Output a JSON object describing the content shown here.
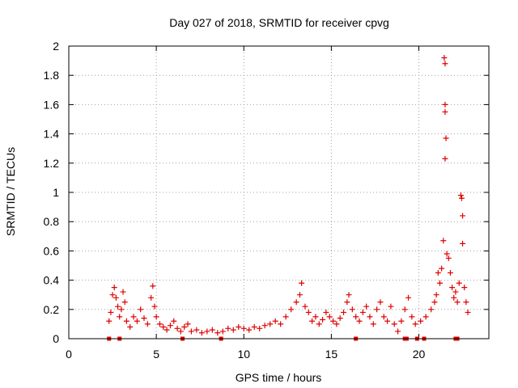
{
  "chart_data": {
    "type": "scatter",
    "title": "Day 027 of 2018, SRMTID for receiver cpvg",
    "xlabel": "GPS time / hours",
    "ylabel": "SRMTID / TECUs",
    "xlim": [
      0,
      24
    ],
    "ylim": [
      0,
      2
    ],
    "xticks": [
      0,
      5,
      10,
      15,
      20
    ],
    "yticks": [
      0,
      0.2,
      0.4,
      0.6,
      0.8,
      1,
      1.2,
      1.4,
      1.6,
      1.8,
      2
    ],
    "xtick_labels": [
      "0",
      "5",
      "10",
      "15",
      "20"
    ],
    "ytick_labels": [
      "0",
      "0.2",
      "0.4",
      "0.6",
      "0.8",
      "1",
      "1.2",
      "1.4",
      "1.6",
      "1.8",
      "2"
    ],
    "grid": true,
    "marker": "+",
    "marker_color": "#e00000",
    "series": [
      {
        "name": "SRMTID",
        "points": [
          [
            2.3,
            0.12
          ],
          [
            2.4,
            0.18
          ],
          [
            2.5,
            0.3
          ],
          [
            2.6,
            0.35
          ],
          [
            2.7,
            0.28
          ],
          [
            2.8,
            0.22
          ],
          [
            2.9,
            0.15
          ],
          [
            3.0,
            0.2
          ],
          [
            3.1,
            0.32
          ],
          [
            3.2,
            0.25
          ],
          [
            3.3,
            0.12
          ],
          [
            3.5,
            0.08
          ],
          [
            3.7,
            0.15
          ],
          [
            3.9,
            0.12
          ],
          [
            4.1,
            0.2
          ],
          [
            4.3,
            0.14
          ],
          [
            4.5,
            0.1
          ],
          [
            4.7,
            0.28
          ],
          [
            4.8,
            0.36
          ],
          [
            4.9,
            0.22
          ],
          [
            5.0,
            0.15
          ],
          [
            5.2,
            0.1
          ],
          [
            5.4,
            0.08
          ],
          [
            5.6,
            0.06
          ],
          [
            5.8,
            0.09
          ],
          [
            6.0,
            0.12
          ],
          [
            6.2,
            0.07
          ],
          [
            6.4,
            0.05
          ],
          [
            6.6,
            0.08
          ],
          [
            6.8,
            0.1
          ],
          [
            7.0,
            0.05
          ],
          [
            7.3,
            0.06
          ],
          [
            7.6,
            0.04
          ],
          [
            7.9,
            0.05
          ],
          [
            8.2,
            0.06
          ],
          [
            8.5,
            0.04
          ],
          [
            8.8,
            0.05
          ],
          [
            9.1,
            0.07
          ],
          [
            9.4,
            0.06
          ],
          [
            9.7,
            0.08
          ],
          [
            10.0,
            0.07
          ],
          [
            10.3,
            0.06
          ],
          [
            10.6,
            0.08
          ],
          [
            10.9,
            0.07
          ],
          [
            11.2,
            0.09
          ],
          [
            11.5,
            0.1
          ],
          [
            11.8,
            0.12
          ],
          [
            12.1,
            0.1
          ],
          [
            12.4,
            0.15
          ],
          [
            12.7,
            0.2
          ],
          [
            13.0,
            0.25
          ],
          [
            13.2,
            0.3
          ],
          [
            13.3,
            0.38
          ],
          [
            13.5,
            0.22
          ],
          [
            13.7,
            0.18
          ],
          [
            13.9,
            0.12
          ],
          [
            14.1,
            0.15
          ],
          [
            14.3,
            0.1
          ],
          [
            14.5,
            0.13
          ],
          [
            14.7,
            0.18
          ],
          [
            14.9,
            0.15
          ],
          [
            15.1,
            0.12
          ],
          [
            15.3,
            0.1
          ],
          [
            15.5,
            0.14
          ],
          [
            15.7,
            0.18
          ],
          [
            15.9,
            0.25
          ],
          [
            16.0,
            0.3
          ],
          [
            16.2,
            0.2
          ],
          [
            16.4,
            0.15
          ],
          [
            16.6,
            0.12
          ],
          [
            16.8,
            0.18
          ],
          [
            17.0,
            0.22
          ],
          [
            17.2,
            0.15
          ],
          [
            17.4,
            0.1
          ],
          [
            17.6,
            0.2
          ],
          [
            17.8,
            0.25
          ],
          [
            18.0,
            0.15
          ],
          [
            18.2,
            0.12
          ],
          [
            18.4,
            0.22
          ],
          [
            18.6,
            0.1
          ],
          [
            18.8,
            0.05
          ],
          [
            19.0,
            0.12
          ],
          [
            19.2,
            0.2
          ],
          [
            19.4,
            0.28
          ],
          [
            19.6,
            0.15
          ],
          [
            19.8,
            0.1
          ],
          [
            20.1,
            0.12
          ],
          [
            20.4,
            0.15
          ],
          [
            20.7,
            0.2
          ],
          [
            20.9,
            0.25
          ],
          [
            21.0,
            0.3
          ],
          [
            21.1,
            0.45
          ],
          [
            21.2,
            0.38
          ],
          [
            21.3,
            0.48
          ],
          [
            21.4,
            0.67
          ],
          [
            21.45,
            1.92
          ],
          [
            21.5,
            1.88
          ],
          [
            21.5,
            1.6
          ],
          [
            21.5,
            1.55
          ],
          [
            21.55,
            1.37
          ],
          [
            21.5,
            1.23
          ],
          [
            21.6,
            0.58
          ],
          [
            21.7,
            0.55
          ],
          [
            21.8,
            0.45
          ],
          [
            21.9,
            0.35
          ],
          [
            22.0,
            0.28
          ],
          [
            22.1,
            0.32
          ],
          [
            22.2,
            0.25
          ],
          [
            22.3,
            0.38
          ],
          [
            22.4,
            0.98
          ],
          [
            22.45,
            0.96
          ],
          [
            22.5,
            0.84
          ],
          [
            22.5,
            0.65
          ],
          [
            22.6,
            0.35
          ],
          [
            22.7,
            0.25
          ],
          [
            22.8,
            0.18
          ]
        ]
      }
    ],
    "gap_markers_x": [
      2.3,
      2.9,
      6.5,
      8.7,
      16.4,
      19.2,
      19.3,
      19.9,
      20.3,
      22.1,
      22.2
    ]
  }
}
